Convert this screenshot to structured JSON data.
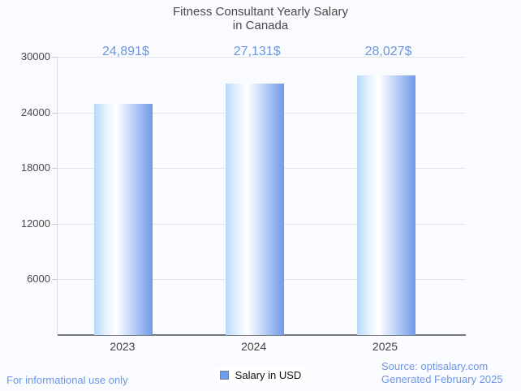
{
  "title": {
    "line1": "Fitness Consultant Yearly Salary",
    "line2": "in Canada"
  },
  "chart_data": {
    "type": "bar",
    "title": "Fitness Consultant Yearly Salary in Canada",
    "categories": [
      "2023",
      "2024",
      "2025"
    ],
    "series": [
      {
        "name": "Salary in USD",
        "values": [
          24891,
          27131,
          28027
        ]
      }
    ],
    "value_labels": [
      "24,891$",
      "27,131$",
      "28,027$"
    ],
    "xlabel": "",
    "ylabel": "",
    "ylim": [
      0,
      30000
    ],
    "yticks": [
      6000,
      12000,
      18000,
      24000,
      30000
    ],
    "grid": true,
    "legend_position": "bottom"
  },
  "legend": {
    "label": "Salary in USD",
    "swatch_color": "#6d9eeb"
  },
  "footer": {
    "left": "For informational use only",
    "source": "Source: optisalary.com",
    "generated": "Generated February 2025"
  },
  "colors": {
    "background": "#fafbfe",
    "title_text": "#4a4a4a",
    "axis_text": "#484848",
    "blue_text": "#6b96de",
    "gridline": "#e2e4e8",
    "baseline": "#74787d",
    "bar_gradient_left": "#b6d9fa",
    "bar_gradient_mid": "#ffffff",
    "bar_gradient_right": "#7298e9"
  }
}
